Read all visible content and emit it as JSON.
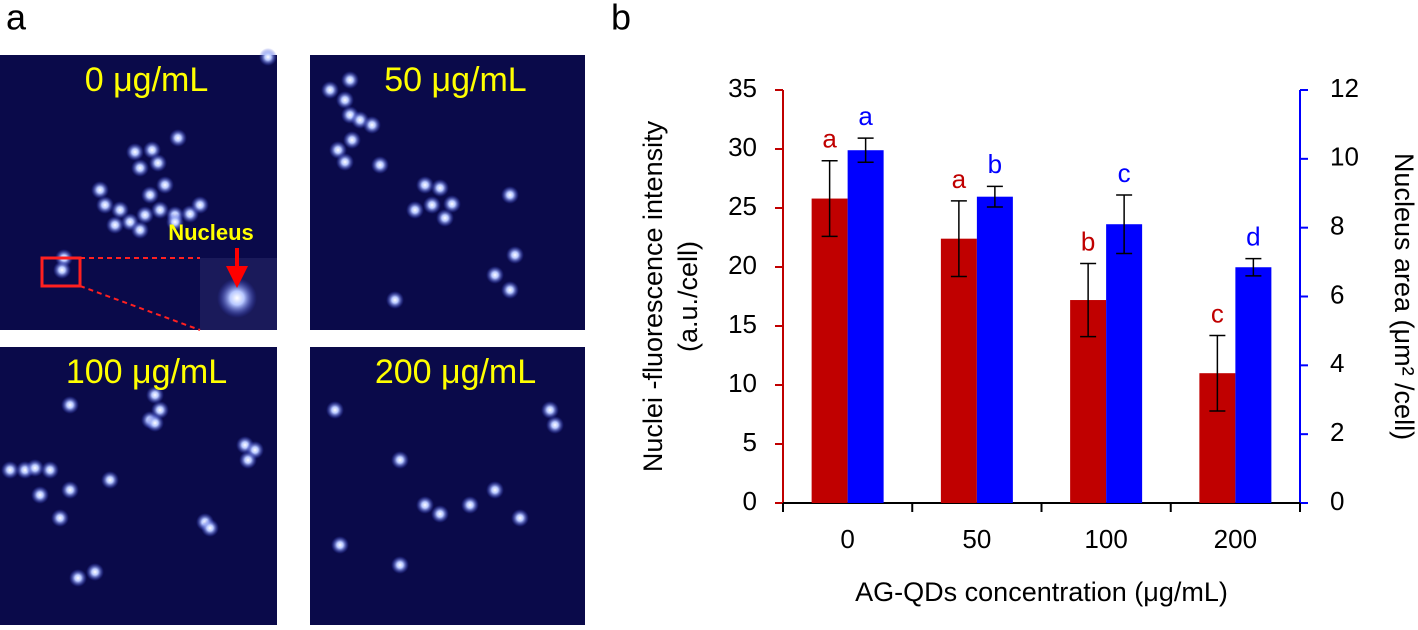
{
  "panel_labels": [
    "a",
    "b"
  ],
  "images": [
    {
      "label": "0 μg/mL",
      "annotation": "Nucleus"
    },
    {
      "label": "50 μg/mL"
    },
    {
      "label": "100 μg/mL"
    },
    {
      "label": "200 μg/mL"
    }
  ],
  "chart_data": {
    "type": "bar",
    "categories": [
      "0",
      "50",
      "100",
      "200"
    ],
    "xlabel": "AG-QDs concentration (μg/mL)",
    "ylabel": [
      "Nuclei -fluorescence intensity",
      "(a.u./cell)"
    ],
    "y2label": "Nucleus area (μm² /cell)",
    "ylim": [
      0,
      35
    ],
    "yticks": [
      0,
      5,
      10,
      15,
      20,
      25,
      30,
      35
    ],
    "y2lim": [
      0,
      12
    ],
    "y2ticks": [
      0,
      2,
      4,
      6,
      8,
      10,
      12
    ],
    "series": [
      {
        "color": "#c00000",
        "values": [
          25.8,
          22.4,
          17.2,
          11.0
        ],
        "errors": [
          3.2,
          3.2,
          3.1,
          3.2
        ],
        "letters": [
          "a",
          "a",
          "b",
          "c"
        ]
      },
      {
        "color": "#0000ff",
        "axis": "y2",
        "values": [
          10.25,
          8.9,
          8.1,
          6.85
        ],
        "errors": [
          0.35,
          0.3,
          0.85,
          0.25
        ],
        "letters": [
          "a",
          "b",
          "c",
          "d"
        ]
      }
    ]
  }
}
